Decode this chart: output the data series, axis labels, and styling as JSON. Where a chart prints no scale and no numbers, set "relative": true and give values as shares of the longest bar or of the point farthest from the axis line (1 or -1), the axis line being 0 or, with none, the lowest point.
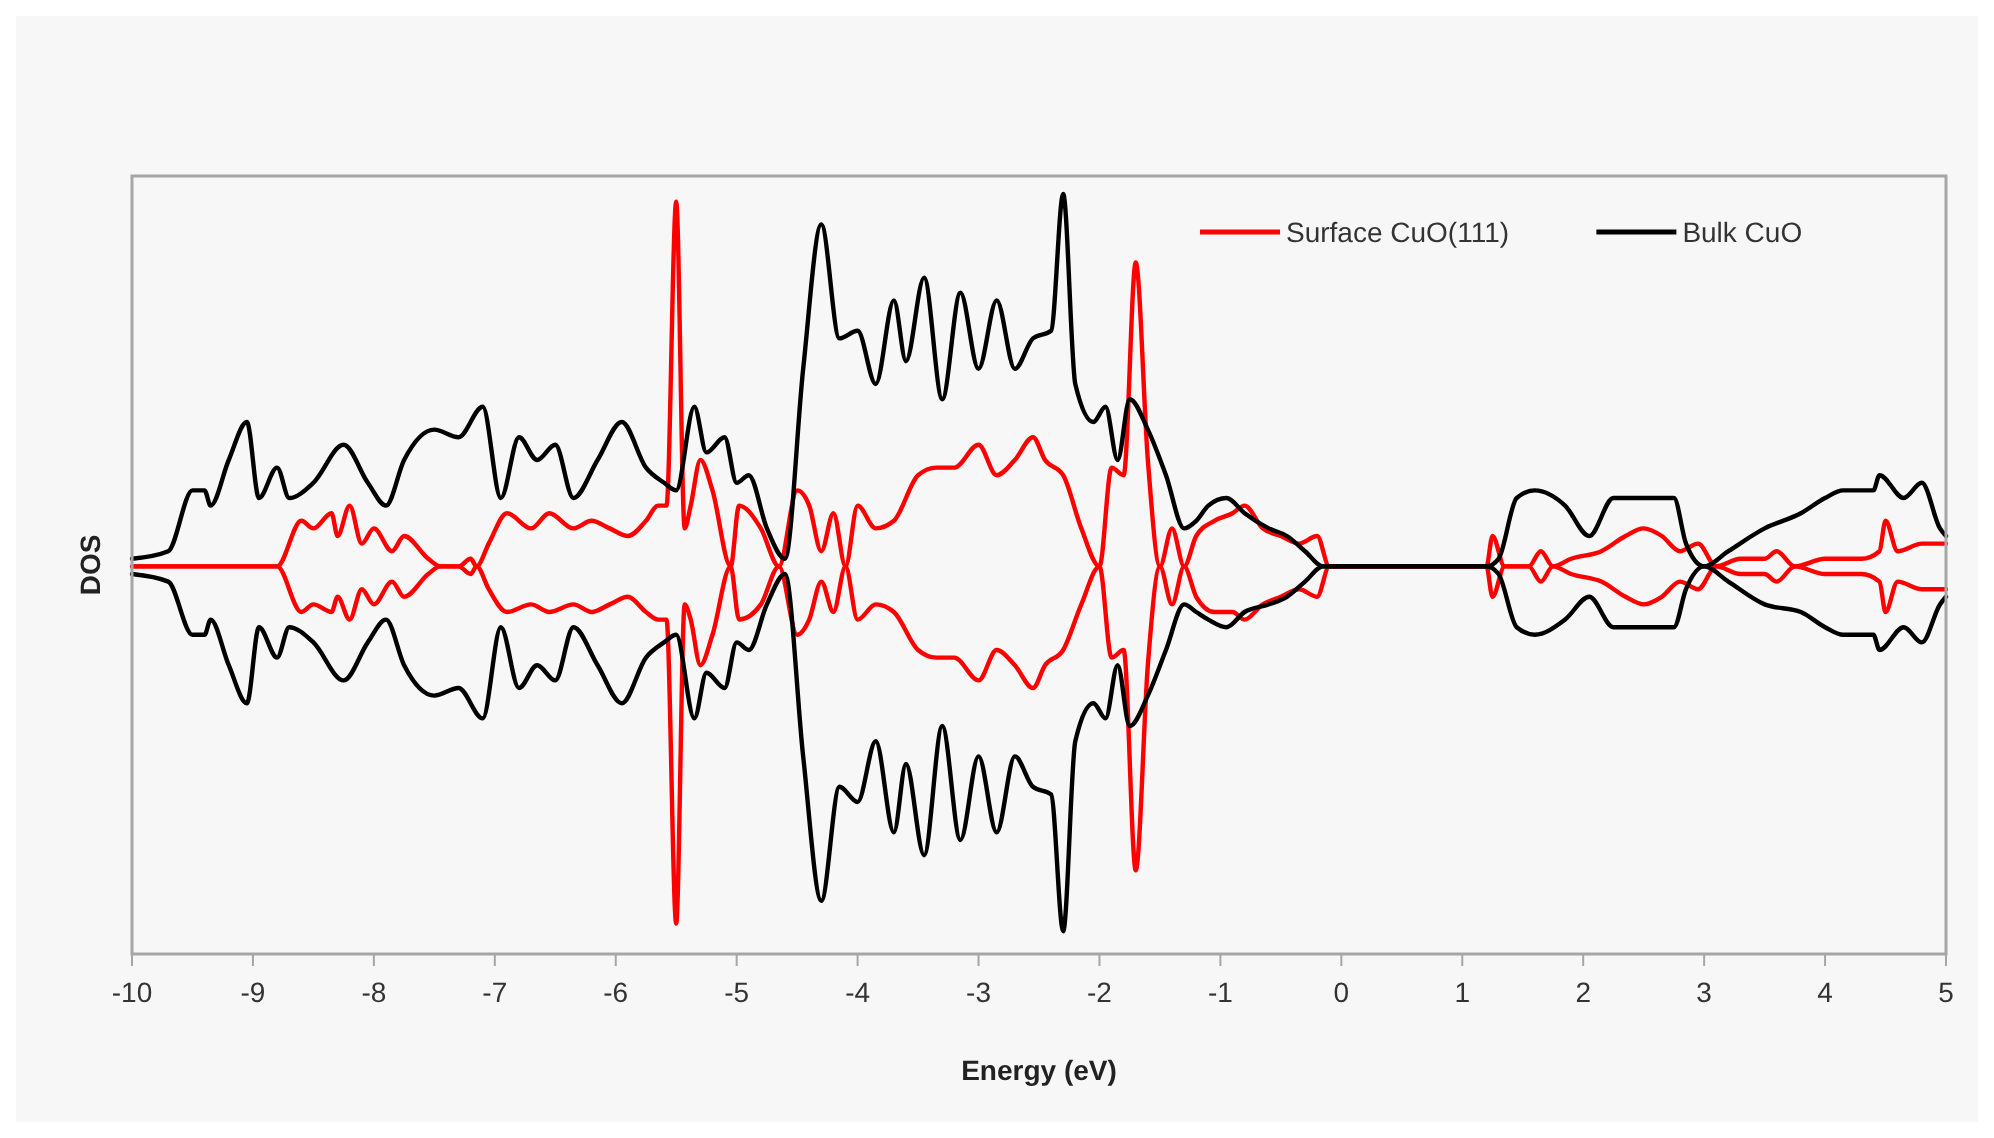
{
  "chart_data": {
    "type": "line",
    "xlabel": "Energy (eV)",
    "ylabel": "DOS",
    "relative": true,
    "xlim": [
      -10,
      5
    ],
    "xticks": [
      -10,
      -9,
      -8,
      -7,
      -6,
      -5,
      -4,
      -3,
      -2,
      -1,
      0,
      1,
      2,
      3,
      4,
      5
    ],
    "grid": false,
    "legend": "top right",
    "marker": "none",
    "line_style": "solid",
    "series": [
      {
        "name": "Surface CuO(111)",
        "color": "#ff0000",
        "x": [
          -10,
          -8.8,
          -8.6,
          -8.5,
          -8.35,
          -8.3,
          -8.2,
          -8.1,
          -8.0,
          -7.85,
          -7.75,
          -7.55,
          -7.45,
          -7.3,
          -7.2,
          -7.15,
          -7.05,
          -6.9,
          -6.7,
          -6.55,
          -6.35,
          -6.2,
          -6.05,
          -5.9,
          -5.75,
          -5.65,
          -5.58,
          -5.5,
          -5.43,
          -5.38,
          -5.3,
          -5.2,
          -5.05,
          -4.98,
          -4.8,
          -4.65,
          -4.5,
          -4.4,
          -4.3,
          -4.2,
          -4.1,
          -4.0,
          -3.85,
          -3.7,
          -3.5,
          -3.35,
          -3.2,
          -3.0,
          -2.85,
          -2.7,
          -2.55,
          -2.45,
          -2.3,
          -2.15,
          -2.0,
          -1.9,
          -1.8,
          -1.7,
          -1.6,
          -1.5,
          -1.4,
          -1.3,
          -1.2,
          -1.05,
          -0.9,
          -0.8,
          -0.65,
          -0.5,
          -0.35,
          -0.2,
          -0.1,
          0,
          1.2,
          1.25,
          1.35,
          1.55,
          1.65,
          1.75,
          1.9,
          2.15,
          2.35,
          2.5,
          2.65,
          2.8,
          2.95,
          3.1,
          3.3,
          3.5,
          3.6,
          3.75,
          4.0,
          4.3,
          4.45,
          4.5,
          4.6,
          4.8,
          5.0
        ],
        "values": [
          0.51,
          0.51,
          0.57,
          0.56,
          0.58,
          0.55,
          0.59,
          0.54,
          0.56,
          0.53,
          0.55,
          0.52,
          0.51,
          0.51,
          0.52,
          0.51,
          0.54,
          0.58,
          0.56,
          0.58,
          0.56,
          0.57,
          0.56,
          0.55,
          0.57,
          0.59,
          0.59,
          0.99,
          0.56,
          0.59,
          0.65,
          0.61,
          0.51,
          0.59,
          0.56,
          0.51,
          0.61,
          0.59,
          0.53,
          0.58,
          0.51,
          0.59,
          0.56,
          0.57,
          0.63,
          0.64,
          0.64,
          0.67,
          0.63,
          0.65,
          0.68,
          0.65,
          0.63,
          0.56,
          0.51,
          0.64,
          0.63,
          0.91,
          0.65,
          0.51,
          0.56,
          0.51,
          0.55,
          0.57,
          0.58,
          0.59,
          0.56,
          0.55,
          0.54,
          0.55,
          0.51,
          0.51,
          0.51,
          0.55,
          0.51,
          0.51,
          0.53,
          0.51,
          0.52,
          0.53,
          0.55,
          0.56,
          0.55,
          0.53,
          0.54,
          0.51,
          0.52,
          0.52,
          0.53,
          0.51,
          0.52,
          0.52,
          0.53,
          0.57,
          0.53,
          0.54,
          0.54
        ]
      },
      {
        "color": "#ff0000",
        "x": [
          -10,
          -8.8,
          -8.6,
          -8.5,
          -8.35,
          -8.3,
          -8.2,
          -8.1,
          -8.0,
          -7.85,
          -7.75,
          -7.55,
          -7.45,
          -7.3,
          -7.2,
          -7.15,
          -7.05,
          -6.9,
          -6.7,
          -6.55,
          -6.35,
          -6.2,
          -6.05,
          -5.9,
          -5.75,
          -5.65,
          -5.58,
          -5.5,
          -5.43,
          -5.38,
          -5.3,
          -5.2,
          -5.05,
          -4.98,
          -4.8,
          -4.65,
          -4.5,
          -4.4,
          -4.3,
          -4.2,
          -4.1,
          -4.0,
          -3.85,
          -3.7,
          -3.5,
          -3.35,
          -3.2,
          -3.0,
          -2.85,
          -2.7,
          -2.55,
          -2.45,
          -2.3,
          -2.15,
          -2.0,
          -1.9,
          -1.8,
          -1.7,
          -1.6,
          -1.5,
          -1.4,
          -1.3,
          -1.2,
          -1.05,
          -0.9,
          -0.8,
          -0.65,
          -0.5,
          -0.35,
          -0.2,
          -0.1,
          0,
          1.2,
          1.25,
          1.35,
          1.55,
          1.65,
          1.75,
          1.9,
          2.15,
          2.35,
          2.5,
          2.65,
          2.8,
          2.95,
          3.1,
          3.3,
          3.5,
          3.6,
          3.75,
          4.0,
          4.3,
          4.45,
          4.5,
          4.6,
          4.8,
          5.0
        ],
        "values": [
          0.51,
          0.51,
          0.45,
          0.46,
          0.45,
          0.47,
          0.44,
          0.48,
          0.46,
          0.49,
          0.47,
          0.5,
          0.51,
          0.51,
          0.5,
          0.51,
          0.48,
          0.45,
          0.46,
          0.45,
          0.46,
          0.45,
          0.46,
          0.47,
          0.45,
          0.44,
          0.44,
          0.04,
          0.46,
          0.44,
          0.38,
          0.42,
          0.51,
          0.44,
          0.46,
          0.51,
          0.42,
          0.44,
          0.49,
          0.45,
          0.51,
          0.44,
          0.46,
          0.45,
          0.4,
          0.39,
          0.39,
          0.36,
          0.4,
          0.38,
          0.35,
          0.38,
          0.4,
          0.46,
          0.51,
          0.39,
          0.4,
          0.11,
          0.38,
          0.51,
          0.46,
          0.51,
          0.47,
          0.45,
          0.45,
          0.44,
          0.46,
          0.47,
          0.48,
          0.47,
          0.51,
          0.51,
          0.51,
          0.47,
          0.51,
          0.51,
          0.49,
          0.51,
          0.5,
          0.49,
          0.47,
          0.46,
          0.47,
          0.49,
          0.48,
          0.51,
          0.5,
          0.5,
          0.49,
          0.51,
          0.5,
          0.5,
          0.49,
          0.45,
          0.49,
          0.48,
          0.48
        ]
      },
      {
        "name": "Bulk CuO",
        "color": "#000000",
        "x": [
          -10,
          -9.7,
          -9.5,
          -9.4,
          -9.35,
          -9.2,
          -9.05,
          -8.95,
          -8.8,
          -8.7,
          -8.5,
          -8.25,
          -8.05,
          -7.9,
          -7.75,
          -7.5,
          -7.3,
          -7.1,
          -6.95,
          -6.8,
          -6.65,
          -6.5,
          -6.35,
          -6.15,
          -5.95,
          -5.75,
          -5.6,
          -5.5,
          -5.35,
          -5.25,
          -5.1,
          -5.0,
          -4.9,
          -4.75,
          -4.6,
          -4.45,
          -4.3,
          -4.15,
          -4.0,
          -3.85,
          -3.7,
          -3.6,
          -3.45,
          -3.3,
          -3.15,
          -3.0,
          -2.85,
          -2.7,
          -2.55,
          -2.4,
          -2.3,
          -2.2,
          -2.05,
          -1.95,
          -1.85,
          -1.75,
          -1.6,
          -1.45,
          -1.3,
          -1.2,
          -1.1,
          -0.95,
          -0.8,
          -0.6,
          -0.45,
          -0.3,
          -0.15,
          0,
          1.2,
          1.3,
          1.45,
          1.6,
          1.85,
          2.05,
          2.25,
          2.5,
          2.75,
          2.85,
          3.0,
          3.2,
          3.5,
          3.8,
          4.0,
          4.15,
          4.4,
          4.45,
          4.65,
          4.8,
          4.95,
          5.0
        ],
        "values": [
          0.52,
          0.53,
          0.61,
          0.61,
          0.59,
          0.65,
          0.7,
          0.6,
          0.64,
          0.6,
          0.62,
          0.67,
          0.62,
          0.59,
          0.65,
          0.69,
          0.68,
          0.72,
          0.6,
          0.68,
          0.65,
          0.67,
          0.6,
          0.65,
          0.7,
          0.64,
          0.62,
          0.61,
          0.72,
          0.66,
          0.68,
          0.62,
          0.63,
          0.56,
          0.52,
          0.77,
          0.96,
          0.81,
          0.82,
          0.75,
          0.86,
          0.78,
          0.89,
          0.73,
          0.87,
          0.77,
          0.86,
          0.77,
          0.81,
          0.82,
          1.0,
          0.75,
          0.7,
          0.72,
          0.65,
          0.73,
          0.69,
          0.63,
          0.56,
          0.57,
          0.59,
          0.6,
          0.58,
          0.56,
          0.55,
          0.53,
          0.51,
          0.51,
          0.51,
          0.52,
          0.6,
          0.61,
          0.59,
          0.55,
          0.6,
          0.6,
          0.6,
          0.54,
          0.51,
          0.53,
          0.56,
          0.58,
          0.6,
          0.61,
          0.61,
          0.63,
          0.6,
          0.62,
          0.56,
          0.55
        ]
      },
      {
        "color": "#000000",
        "x": [
          -10,
          -9.7,
          -9.5,
          -9.4,
          -9.35,
          -9.2,
          -9.05,
          -8.95,
          -8.8,
          -8.7,
          -8.5,
          -8.25,
          -8.05,
          -7.9,
          -7.75,
          -7.5,
          -7.3,
          -7.1,
          -6.95,
          -6.8,
          -6.65,
          -6.5,
          -6.35,
          -6.15,
          -5.95,
          -5.75,
          -5.6,
          -5.5,
          -5.35,
          -5.25,
          -5.1,
          -5.0,
          -4.9,
          -4.75,
          -4.6,
          -4.45,
          -4.3,
          -4.15,
          -4.0,
          -3.85,
          -3.7,
          -3.6,
          -3.45,
          -3.3,
          -3.15,
          -3.0,
          -2.85,
          -2.7,
          -2.55,
          -2.4,
          -2.3,
          -2.2,
          -2.05,
          -1.95,
          -1.85,
          -1.75,
          -1.6,
          -1.45,
          -1.3,
          -1.2,
          -1.1,
          -0.95,
          -0.8,
          -0.6,
          -0.45,
          -0.3,
          -0.15,
          0,
          1.2,
          1.3,
          1.45,
          1.6,
          1.85,
          2.05,
          2.25,
          2.5,
          2.75,
          2.85,
          3.0,
          3.2,
          3.5,
          3.8,
          4.0,
          4.15,
          4.4,
          4.45,
          4.65,
          4.8,
          4.95,
          5.0
        ],
        "values": [
          0.5,
          0.49,
          0.42,
          0.42,
          0.44,
          0.38,
          0.33,
          0.43,
          0.39,
          0.43,
          0.41,
          0.36,
          0.41,
          0.44,
          0.38,
          0.34,
          0.35,
          0.31,
          0.43,
          0.35,
          0.38,
          0.36,
          0.43,
          0.38,
          0.33,
          0.39,
          0.41,
          0.42,
          0.31,
          0.37,
          0.35,
          0.41,
          0.4,
          0.46,
          0.5,
          0.26,
          0.07,
          0.22,
          0.2,
          0.28,
          0.16,
          0.25,
          0.13,
          0.3,
          0.15,
          0.26,
          0.16,
          0.26,
          0.22,
          0.21,
          0.03,
          0.28,
          0.33,
          0.31,
          0.38,
          0.3,
          0.34,
          0.4,
          0.46,
          0.45,
          0.44,
          0.43,
          0.45,
          0.46,
          0.47,
          0.49,
          0.51,
          0.51,
          0.51,
          0.5,
          0.43,
          0.42,
          0.44,
          0.47,
          0.43,
          0.43,
          0.43,
          0.48,
          0.51,
          0.49,
          0.46,
          0.45,
          0.43,
          0.42,
          0.42,
          0.4,
          0.43,
          0.41,
          0.46,
          0.47
        ]
      }
    ]
  }
}
